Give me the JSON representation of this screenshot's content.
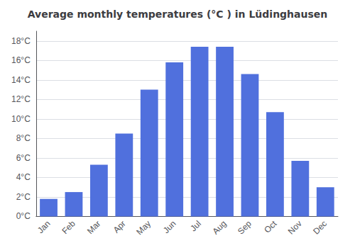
{
  "chart_data": {
    "type": "bar",
    "title": "Average monthly temperatures (°C ) in Lüdinghausen",
    "categories": [
      "Jan",
      "Feb",
      "Mar",
      "Apr",
      "May",
      "Jun",
      "Jul",
      "Aug",
      "Sep",
      "Oct",
      "Nov",
      "Dec"
    ],
    "values": [
      1.8,
      2.5,
      5.3,
      8.5,
      13.0,
      15.8,
      17.4,
      17.4,
      14.6,
      10.7,
      5.7,
      3.0
    ],
    "ylim": [
      0,
      19
    ],
    "yticks": [
      {
        "value": 0,
        "label": "0°C"
      },
      {
        "value": 2,
        "label": "2°C"
      },
      {
        "value": 4,
        "label": "4°C"
      },
      {
        "value": 6,
        "label": "6°C"
      },
      {
        "value": 8,
        "label": "8°C"
      },
      {
        "value": 10,
        "label": "10°C"
      },
      {
        "value": 12,
        "label": "12°C"
      },
      {
        "value": 14,
        "label": "14°C"
      },
      {
        "value": 16,
        "label": "16°C"
      },
      {
        "value": 18,
        "label": "18°C"
      }
    ],
    "grid": true
  }
}
